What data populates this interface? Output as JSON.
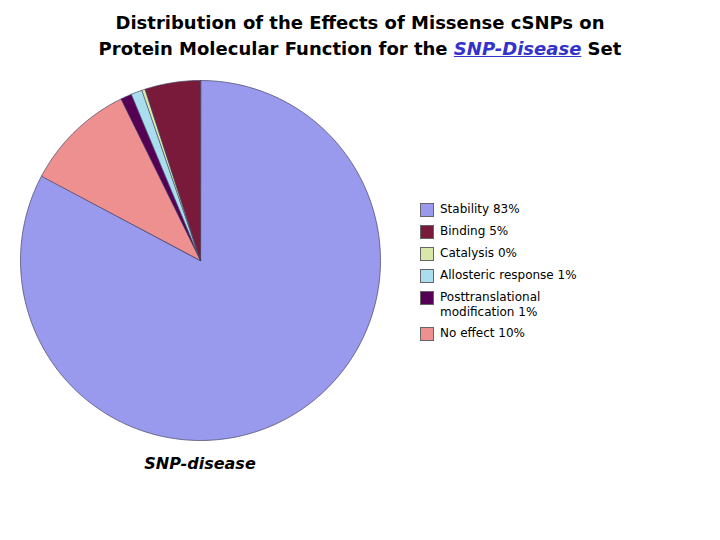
{
  "chart_data": {
    "type": "pie",
    "title": "Distribution of the Effects of Missense cSNPs on\nProtein Molecular Function for the SNP-Disease Set",
    "title_highlight": {
      "text": "SNP-Disease",
      "color": "#3333cc"
    },
    "subtitle": "SNP-disease",
    "values": [
      83,
      10,
      1,
      1,
      0.3,
      5
    ],
    "colors": [
      "#9999ee",
      "#ee9090",
      "#550055",
      "#aaddee",
      "#d8e8a8",
      "#7a1a3a"
    ],
    "legend_entries": [
      {
        "name": "Stability 83%",
        "color": "#9999ee"
      },
      {
        "name": "Binding 5%",
        "color": "#7a1a3a"
      },
      {
        "name": "Catalysis 0%",
        "color": "#d8e8a8"
      },
      {
        "name": "Allosteric response 1%",
        "color": "#aaddee"
      },
      {
        "name": "Posttranslational\nmodification 1%",
        "color": "#550055"
      },
      {
        "name": "No effect 10%",
        "color": "#ee9090"
      }
    ],
    "legend": "right"
  }
}
